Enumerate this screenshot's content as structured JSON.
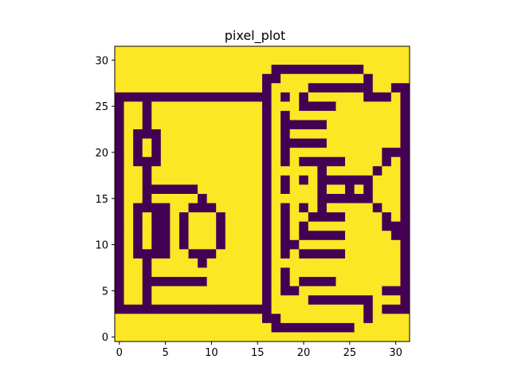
{
  "chart_data": {
    "type": "heatmap",
    "title": "pixel_plot",
    "xlabel": "",
    "ylabel": "",
    "colormap": "viridis",
    "colors": {
      "low": "#440154",
      "high": "#fde725"
    },
    "xlim": [
      -0.5,
      31.5
    ],
    "ylim": [
      31.5,
      -0.5
    ],
    "xticks": [
      "0",
      "5",
      "10",
      "15",
      "20",
      "25",
      "30"
    ],
    "yticks": [
      "0",
      "5",
      "10",
      "15",
      "20",
      "25",
      "30"
    ],
    "grid": false,
    "legend": "none",
    "rows": [
      "00000000000000000000000000000000",
      "00000000000000000000000000000000",
      "00000000000000000111111111100000",
      "00000000000000001100000000010000",
      "00000000000000001000011111110011",
      "11111111111111111010100000011101",
      "10010000000000001000111100000001",
      "10010000000000001010000000000001",
      "10010000000000001011111000000001",
      "10111000000000001010000000000001",
      "10101000000000001011111000000001",
      "10101000000000001010000000000111",
      "10111000000000001010111110000101",
      "10010000000000001000001000001001",
      "10010000000000001010101111110001",
      "10011111100000001010001001010001",
      "10010000010000001000001111110001",
      "10111100111000001010101000001001",
      "10101101000100001010011110000101",
      "10101101000100001010100000000111",
      "10101101000100001010111110000011",
      "10101101000100001011000000000001",
      "10111100111000001010111110000001",
      "10010000010000001000000000000001",
      "10010000000000001010000000000001",
      "10011111110000001010111100000001",
      "10010000000000001011000000000111",
      "10010000000000001000011111110001",
      "11111111111111111000000000010111",
      "00000000000000001100000000010000",
      "00000000000000000111111111000000",
      "00000000000000000000000000000000"
    ]
  }
}
